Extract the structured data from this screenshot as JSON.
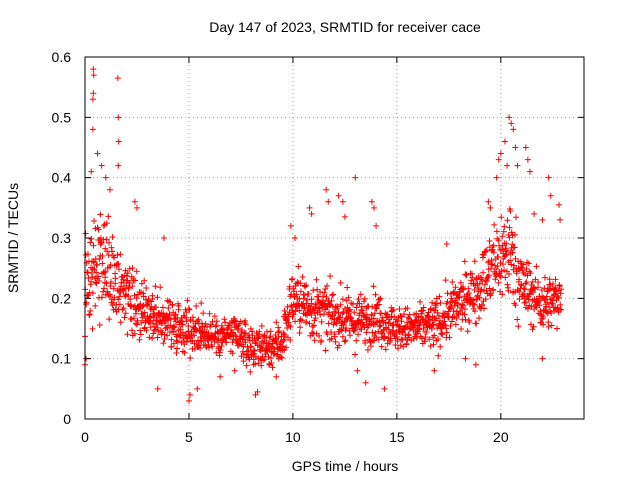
{
  "chart_data": {
    "type": "scatter",
    "title": "Day 147 of 2023, SRMTID for receiver cace",
    "xlabel": "GPS time / hours",
    "ylabel": "SRMTID / TECUs",
    "xlim": [
      0,
      24
    ],
    "ylim": [
      0,
      0.6
    ],
    "xticks": [
      0,
      5,
      10,
      15,
      20
    ],
    "yticks": [
      0,
      0.1,
      0.2,
      0.3,
      0.4,
      0.5,
      0.6
    ],
    "xtick_labels": [
      "0",
      "5",
      "10",
      "15",
      "20"
    ],
    "ytick_labels": [
      "0",
      "0.1",
      "0.2",
      "0.3",
      "0.4",
      "0.5",
      "0.6"
    ],
    "grid": true,
    "marker": "+",
    "color": "#ff0000",
    "x_range_data": [
      0,
      22.9
    ],
    "series": [
      {
        "name": "SRMTID",
        "envelope": {
          "hours": [
            0,
            0.5,
            1,
            1.5,
            2,
            3,
            4,
            5,
            6,
            7,
            8,
            9,
            9.5,
            10,
            11,
            12,
            13,
            14,
            15,
            16,
            17,
            18,
            19,
            20,
            20.5,
            21,
            22,
            22.9
          ],
          "median": [
            0.22,
            0.26,
            0.25,
            0.23,
            0.2,
            0.17,
            0.16,
            0.15,
            0.14,
            0.14,
            0.12,
            0.12,
            0.13,
            0.2,
            0.18,
            0.17,
            0.16,
            0.17,
            0.15,
            0.15,
            0.16,
            0.19,
            0.22,
            0.27,
            0.28,
            0.22,
            0.19,
            0.2
          ],
          "spread": [
            0.09,
            0.1,
            0.09,
            0.08,
            0.06,
            0.05,
            0.05,
            0.05,
            0.04,
            0.04,
            0.04,
            0.04,
            0.05,
            0.06,
            0.06,
            0.05,
            0.05,
            0.05,
            0.04,
            0.04,
            0.05,
            0.05,
            0.06,
            0.09,
            0.1,
            0.07,
            0.05,
            0.05
          ]
        },
        "outliers": [
          [
            0.4,
            0.58
          ],
          [
            0.42,
            0.57
          ],
          [
            0.4,
            0.54
          ],
          [
            0.38,
            0.53
          ],
          [
            0.38,
            0.48
          ],
          [
            1.58,
            0.565
          ],
          [
            1.6,
            0.5
          ],
          [
            1.62,
            0.46
          ],
          [
            1.6,
            0.42
          ],
          [
            0.6,
            0.44
          ],
          [
            0.8,
            0.42
          ],
          [
            1.0,
            0.4
          ],
          [
            0.3,
            0.41
          ],
          [
            1.2,
            0.38
          ],
          [
            2.4,
            0.36
          ],
          [
            2.5,
            0.35
          ],
          [
            3.8,
            0.3
          ],
          [
            11.6,
            0.38
          ],
          [
            11.7,
            0.36
          ],
          [
            12.2,
            0.37
          ],
          [
            12.4,
            0.36
          ],
          [
            12.5,
            0.335
          ],
          [
            13.0,
            0.4
          ],
          [
            13.8,
            0.36
          ],
          [
            13.9,
            0.35
          ],
          [
            14.0,
            0.32
          ],
          [
            10.8,
            0.35
          ],
          [
            10.9,
            0.34
          ],
          [
            9.9,
            0.32
          ],
          [
            10.1,
            0.3
          ],
          [
            20.4,
            0.5
          ],
          [
            20.5,
            0.49
          ],
          [
            20.6,
            0.48
          ],
          [
            20.7,
            0.45
          ],
          [
            20.2,
            0.46
          ],
          [
            20.0,
            0.44
          ],
          [
            19.9,
            0.43
          ],
          [
            20.3,
            0.42
          ],
          [
            20.8,
            0.42
          ],
          [
            19.8,
            0.4
          ],
          [
            21.2,
            0.45
          ],
          [
            21.3,
            0.43
          ],
          [
            21.4,
            0.41
          ],
          [
            19.4,
            0.36
          ],
          [
            19.5,
            0.35
          ],
          [
            21.6,
            0.34
          ],
          [
            22.0,
            0.33
          ],
          [
            22.3,
            0.4
          ],
          [
            22.4,
            0.37
          ],
          [
            22.8,
            0.355
          ],
          [
            22.85,
            0.33
          ],
          [
            17.4,
            0.29
          ],
          [
            5.4,
            0.05
          ],
          [
            5.05,
            0.04
          ],
          [
            5.0,
            0.03
          ],
          [
            8.2,
            0.04
          ],
          [
            8.3,
            0.045
          ],
          [
            9.2,
            0.07
          ],
          [
            14.4,
            0.05
          ],
          [
            13.5,
            0.06
          ],
          [
            3.5,
            0.05
          ],
          [
            0.0,
            0.09
          ],
          [
            0.05,
            0.1
          ],
          [
            6.5,
            0.07
          ],
          [
            7.2,
            0.08
          ],
          [
            18.8,
            0.09
          ],
          [
            22.0,
            0.1
          ],
          [
            18.3,
            0.1
          ],
          [
            16.8,
            0.08
          ],
          [
            13.1,
            0.08
          ]
        ]
      }
    ]
  }
}
